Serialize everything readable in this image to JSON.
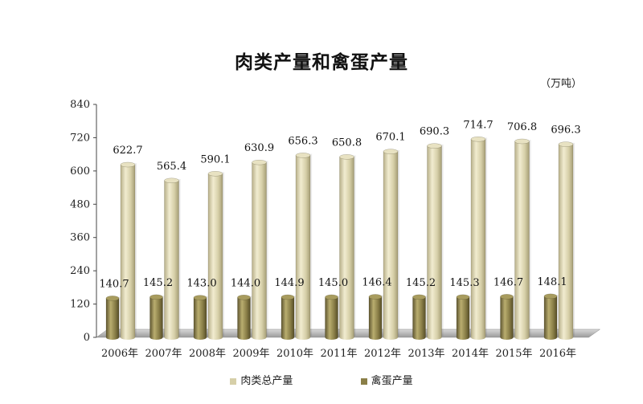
{
  "title": "肉类产量和禽蛋产量",
  "unit": "（万吨）",
  "legend": [
    {
      "label": "肉类总产量",
      "color": "#d6cfa8"
    },
    {
      "label": "禽蛋产量",
      "color": "#8a7f48"
    }
  ],
  "chart_data": {
    "type": "bar",
    "title": "肉类产量和禽蛋产量",
    "categories": [
      "2006年",
      "2007年",
      "2008年",
      "2009年",
      "2010年",
      "2011年",
      "2012年",
      "2013年",
      "2014年",
      "2015年",
      "2016年"
    ],
    "series": [
      {
        "name": "肉类总产量",
        "values": [
          622.7,
          565.4,
          590.1,
          630.9,
          656.3,
          650.8,
          670.1,
          690.3,
          714.7,
          706.8,
          696.3
        ],
        "color": "#d6cfa8"
      },
      {
        "name": "禽蛋产量",
        "values": [
          140.7,
          145.2,
          143.0,
          144.0,
          144.9,
          145.0,
          146.4,
          145.2,
          145.3,
          146.7,
          148.1
        ],
        "color": "#8a7f48"
      }
    ],
    "yticks": [
      "0",
      "120",
      "240",
      "360",
      "480",
      "600",
      "720",
      "840"
    ],
    "ylim": [
      0,
      840
    ],
    "grid": false,
    "legend_position": "bottom",
    "three_d": true
  }
}
